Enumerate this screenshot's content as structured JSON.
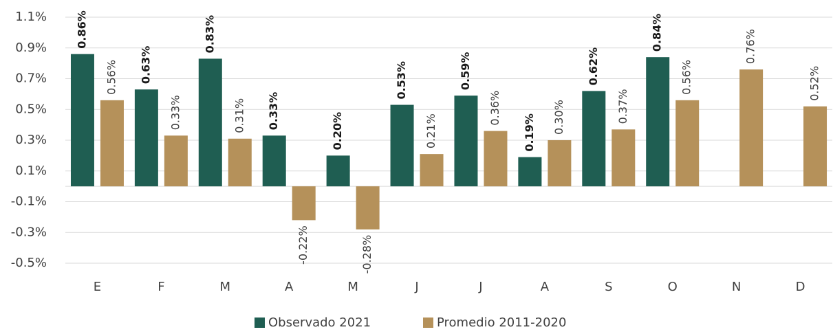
{
  "chart_data": {
    "type": "bar",
    "categories": [
      "E",
      "F",
      "M",
      "A",
      "M",
      "J",
      "J",
      "A",
      "S",
      "O",
      "N",
      "D"
    ],
    "series": [
      {
        "name": "Observado 2021",
        "color": "#1f5e52",
        "values": [
          0.86,
          0.63,
          0.83,
          0.33,
          0.2,
          0.53,
          0.59,
          0.19,
          0.62,
          0.84,
          null,
          null
        ],
        "value_labels": [
          "0.86%",
          "0.63%",
          "0.83%",
          "0.33%",
          "0.20%",
          "0.53%",
          "0.59%",
          "0.19%",
          "0.62%",
          "0.84%",
          null,
          null
        ]
      },
      {
        "name": "Promedio 2011-2020",
        "color": "#b5915a",
        "values": [
          0.56,
          0.33,
          0.31,
          -0.22,
          -0.28,
          0.21,
          0.36,
          0.3,
          0.37,
          0.56,
          0.76,
          0.52
        ],
        "value_labels": [
          "0.56%",
          "0.33%",
          "0.31%",
          "-0.22%",
          "-0.28%",
          "0.21%",
          "0.36%",
          "0.30%",
          "0.37%",
          "0.56%",
          "0.76%",
          "0.52%"
        ]
      }
    ],
    "ylim": [
      -0.5,
      1.1
    ],
    "yticks": [
      {
        "value": -0.5,
        "label": "-0.5%"
      },
      {
        "value": -0.3,
        "label": "-0.3%"
      },
      {
        "value": -0.1,
        "label": "-0.1%"
      },
      {
        "value": 0.1,
        "label": "0.1%"
      },
      {
        "value": 0.3,
        "label": "0.3%"
      },
      {
        "value": 0.5,
        "label": "0.5%"
      },
      {
        "value": 0.7,
        "label": "0.7%"
      },
      {
        "value": 0.9,
        "label": "0.9%"
      },
      {
        "value": 1.1,
        "label": "1.1%"
      }
    ],
    "grid": true,
    "legend": "bottom"
  }
}
